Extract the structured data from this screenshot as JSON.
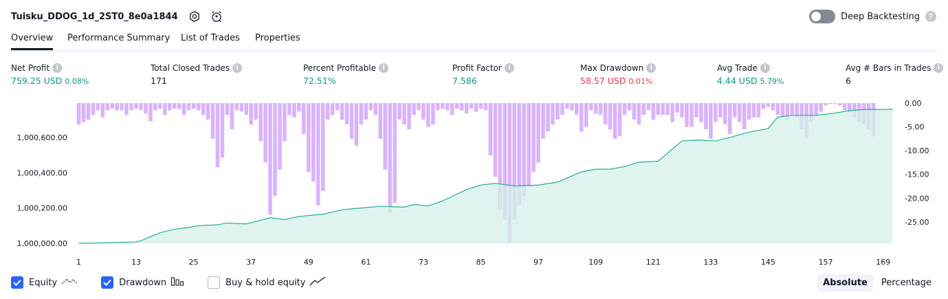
{
  "header": {
    "title": "Tuisku_DDOG_1d_2ST0_8e0a1844",
    "settings_icon": "gear-icon",
    "alert_icon": "alarm-clock-icon"
  },
  "deep_backtesting": {
    "label": "Deep Backtesting",
    "enabled": false,
    "help": "?"
  },
  "tabs": [
    {
      "label": "Overview",
      "active": true
    },
    {
      "label": "Performance Summary",
      "active": false
    },
    {
      "label": "List of Trades",
      "active": false
    },
    {
      "label": "Properties",
      "active": false
    }
  ],
  "metrics": {
    "net_profit": {
      "label": "Net Profit",
      "value": "759.25 USD",
      "pct": "0.08%"
    },
    "total_closed_trades": {
      "label": "Total Closed Trades",
      "value": "171"
    },
    "percent_profitable": {
      "label": "Percent Profitable",
      "value": "72.51%"
    },
    "profit_factor": {
      "label": "Profit Factor",
      "value": "7.586"
    },
    "max_drawdown": {
      "label": "Max Drawdown",
      "value": "58.57 USD",
      "pct": "0.01%"
    },
    "avg_trade": {
      "label": "Avg Trade",
      "value": "4.44 USD",
      "pct": "5.79%"
    },
    "avg_bars": {
      "label": "Avg # Bars in Trades",
      "value": "6"
    }
  },
  "info_glyph": "i",
  "colors": {
    "positive": "#089981",
    "negative": "#f23645",
    "equity_line": "#22ab94",
    "equity_fill": "#d4f0e8",
    "drawdown_bar": "#d9b3fc",
    "accent": "#2962ff"
  },
  "chart_data": {
    "type": "area",
    "x_ticks": [
      1,
      13,
      25,
      37,
      49,
      61,
      73,
      85,
      97,
      109,
      121,
      133,
      145,
      157,
      169
    ],
    "x_range": [
      1,
      171
    ],
    "left_axis": {
      "ticks": [
        "1,000,000.00",
        "1,000,200.00",
        "1,000,400.00",
        "1,000,600.00"
      ],
      "tick_values": [
        1000000,
        1000200,
        1000400,
        1000600
      ],
      "range": [
        1000000,
        1000759.25
      ]
    },
    "right_axis": {
      "ticks": [
        "0.00",
        "-5.00",
        "-10.00",
        "-15.00",
        "-20.00",
        "-25.00"
      ],
      "tick_values": [
        0,
        -5,
        -10,
        -15,
        -20,
        -25
      ],
      "range": [
        -29.5,
        0
      ]
    },
    "series": [
      {
        "name": "Equity",
        "type": "area",
        "points": [
          [
            1,
            0
          ],
          [
            5,
            2
          ],
          [
            9,
            5
          ],
          [
            13,
            8
          ],
          [
            14,
            15
          ],
          [
            18,
            60
          ],
          [
            21,
            80
          ],
          [
            24,
            90
          ],
          [
            26,
            100
          ],
          [
            30,
            105
          ],
          [
            32,
            115
          ],
          [
            36,
            110
          ],
          [
            41,
            145
          ],
          [
            44,
            135
          ],
          [
            47,
            152
          ],
          [
            52,
            165
          ],
          [
            56,
            190
          ],
          [
            60,
            200
          ],
          [
            64,
            210
          ],
          [
            69,
            205
          ],
          [
            71,
            220
          ],
          [
            74,
            212
          ],
          [
            77,
            240
          ],
          [
            82,
            305
          ],
          [
            85,
            330
          ],
          [
            88,
            340
          ],
          [
            92,
            325
          ],
          [
            97,
            330
          ],
          [
            101,
            347
          ],
          [
            106,
            405
          ],
          [
            109,
            420
          ],
          [
            112,
            420
          ],
          [
            115,
            435
          ],
          [
            118,
            460
          ],
          [
            122,
            465
          ],
          [
            127,
            580
          ],
          [
            130,
            585
          ],
          [
            134,
            580
          ],
          [
            137,
            600
          ],
          [
            141,
            630
          ],
          [
            145,
            650
          ],
          [
            147,
            715
          ],
          [
            150,
            725
          ],
          [
            155,
            725
          ],
          [
            159,
            738
          ],
          [
            162,
            752
          ],
          [
            166,
            759.25
          ],
          [
            168,
            758
          ],
          [
            171,
            759.25
          ]
        ]
      },
      {
        "name": "Drawdown",
        "type": "bar",
        "values": [
          -4.5,
          -4,
          -3.5,
          -2.5,
          -1.5,
          -3,
          -1.5,
          -1.2,
          -1.5,
          -1.5,
          -2.5,
          -1.5,
          -1.2,
          -1.5,
          -2.2,
          -3.8,
          -1.5,
          -1.2,
          -2.5,
          -1.5,
          -1.2,
          -1.2,
          -2.5,
          -1.5,
          -1.2,
          -1.5,
          -2.5,
          -3.5,
          -7.5,
          -13.5,
          -11.5,
          -2.5,
          -5.5,
          -1.5,
          -1.8,
          -2.5,
          -4.5,
          -3.5,
          -8,
          -12.5,
          -23.5,
          -19.5,
          -14,
          -8,
          -2.5,
          -3,
          -1.8,
          -6.5,
          -14.5,
          -16.5,
          -21.5,
          -18.5,
          -3.5,
          -2.5,
          -1.5,
          -3.5,
          -4.5,
          -7.5,
          -9,
          -4.5,
          -3.5,
          -1.5,
          -2.5,
          -7.5,
          -14,
          -23,
          -21,
          -3.5,
          -4.5,
          -5.5,
          -2.5,
          -1.5,
          -3.5,
          -5,
          -4.5,
          -1.5,
          -1.2,
          -1.5,
          -2.5,
          -1.2,
          -1.5,
          -2.2,
          -1.2,
          -1.8,
          -1.2,
          -1.5,
          -11,
          -15.5,
          -22.5,
          -24.5,
          -29.5,
          -24.5,
          -21.5,
          -19.5,
          -17.5,
          -14.5,
          -12.5,
          -7.5,
          -6,
          -4.5,
          -3.5,
          -2.5,
          -1.2,
          -1.5,
          -2.5,
          -6,
          -5,
          -1.5,
          -2.2,
          -2.5,
          -4.5,
          -5.5,
          -7.5,
          -7,
          -2.5,
          -1.5,
          -3.5,
          -4.5,
          -2.5,
          -1.5,
          -3.5,
          -2.5,
          -2.5,
          -2.5,
          -4,
          -2,
          -3,
          -5,
          -5,
          -3,
          -4,
          -5.5,
          -7.5,
          -4,
          -3,
          -4.5,
          -6.5,
          -3,
          -4,
          -5.5,
          -3.5,
          -3,
          -3,
          -1.2,
          -0.8,
          -1.5,
          -2.5,
          -3,
          -3.5,
          -2.5,
          -3,
          -5.5,
          -7.5,
          -4,
          -2.5,
          -1.8,
          -0.5,
          -0.2,
          -0.2,
          -0.5,
          -1.5,
          -2,
          -3,
          -4,
          -4.5,
          -5.5,
          -7
        ]
      }
    ],
    "legend": [
      {
        "name": "Equity",
        "checked": true,
        "icon": "equity-line-icon"
      },
      {
        "name": "Drawdown",
        "checked": true,
        "icon": "drawdown-bars-icon"
      },
      {
        "name": "Buy & hold equity",
        "checked": false,
        "icon": "buy-hold-line-icon"
      }
    ]
  },
  "scale_modes": [
    {
      "label": "Absolute",
      "active": true
    },
    {
      "label": "Percentage",
      "active": false
    }
  ]
}
